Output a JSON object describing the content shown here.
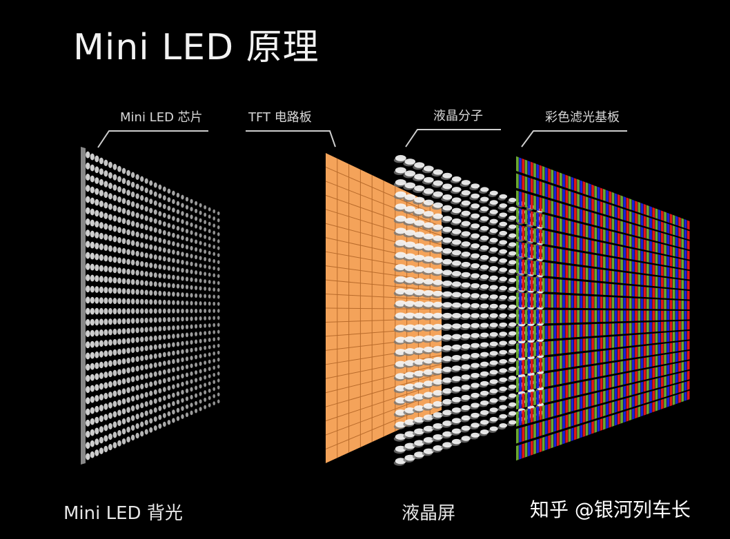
{
  "title": "Mini LED 原理",
  "labels": {
    "led_chip": "Mini LED 芯片",
    "tft": "TFT 电路板",
    "lc_molecule": "液晶分子",
    "color_filter": "彩色滤光基板"
  },
  "bottom": {
    "backlight": "Mini LED 背光",
    "lcd": "液晶屏"
  },
  "watermark": "知乎 @银河列车长",
  "colors": {
    "background": "#000000",
    "tft": "#f4a35a",
    "led": "#e8e8e8",
    "filter_red": "#e01818",
    "filter_green": "#6aa832",
    "filter_blue": "#1a22d8"
  }
}
